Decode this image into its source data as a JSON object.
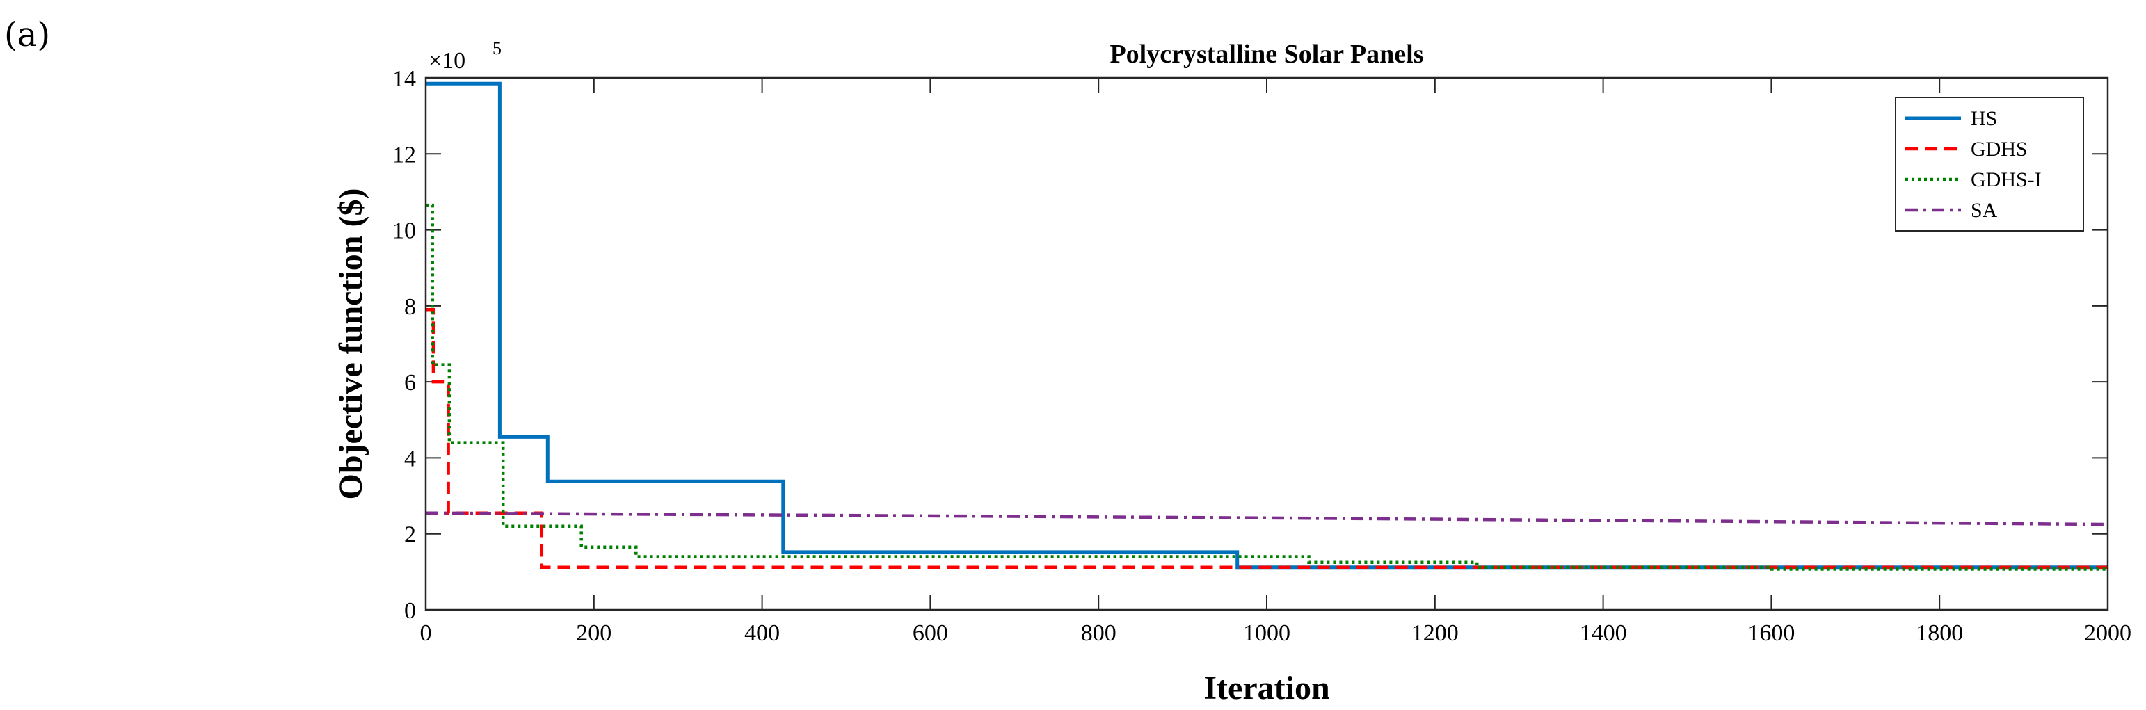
{
  "panel_label": "(a)",
  "chart_data": {
    "type": "line",
    "title": "Polycrystalline Solar Panels",
    "xlabel": "Iteration",
    "ylabel": "Objective function ($)",
    "y_multiplier": "×10",
    "y_exponent": "5",
    "xlim": [
      0,
      2000
    ],
    "ylim": [
      0,
      14
    ],
    "xticks": [
      0,
      200,
      400,
      600,
      800,
      1000,
      1200,
      1400,
      1600,
      1800,
      2000
    ],
    "yticks": [
      0,
      2,
      4,
      6,
      8,
      10,
      12,
      14
    ],
    "legend_position": "top-right",
    "series": [
      {
        "name": "HS",
        "color": "#0072BD",
        "dash": "solid",
        "step": true,
        "points": [
          [
            0,
            13.85
          ],
          [
            88,
            13.85
          ],
          [
            88,
            4.55
          ],
          [
            145,
            4.55
          ],
          [
            145,
            3.38
          ],
          [
            425,
            3.38
          ],
          [
            425,
            1.52
          ],
          [
            965,
            1.52
          ],
          [
            965,
            1.12
          ],
          [
            2000,
            1.12
          ]
        ]
      },
      {
        "name": "GDHS",
        "color": "#FF0000",
        "dash": "dashed",
        "step": true,
        "points": [
          [
            0,
            7.9
          ],
          [
            9,
            7.9
          ],
          [
            9,
            6.0
          ],
          [
            27,
            6.0
          ],
          [
            27,
            2.55
          ],
          [
            138,
            2.55
          ],
          [
            138,
            1.12
          ],
          [
            2000,
            1.12
          ]
        ]
      },
      {
        "name": "GDHS-I",
        "color": "#008000",
        "dash": "dotted",
        "step": true,
        "points": [
          [
            0,
            10.65
          ],
          [
            8,
            10.65
          ],
          [
            8,
            6.45
          ],
          [
            28,
            6.45
          ],
          [
            28,
            4.4
          ],
          [
            92,
            4.4
          ],
          [
            92,
            2.2
          ],
          [
            185,
            2.2
          ],
          [
            185,
            1.65
          ],
          [
            250,
            1.65
          ],
          [
            250,
            1.4
          ],
          [
            1050,
            1.4
          ],
          [
            1050,
            1.25
          ],
          [
            1250,
            1.25
          ],
          [
            1250,
            1.12
          ],
          [
            1600,
            1.12
          ],
          [
            1600,
            1.07
          ],
          [
            2000,
            1.07
          ]
        ]
      },
      {
        "name": "SA",
        "color": "#7E2F8E",
        "dash": "dashdot",
        "step": false,
        "points": [
          [
            0,
            2.55
          ],
          [
            400,
            2.5
          ],
          [
            1000,
            2.42
          ],
          [
            1600,
            2.32
          ],
          [
            2000,
            2.25
          ]
        ]
      }
    ]
  }
}
